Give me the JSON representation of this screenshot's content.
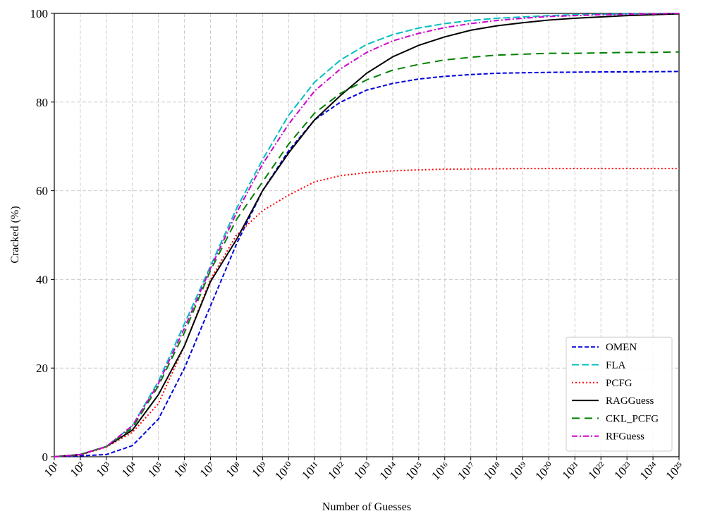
{
  "chart_data": {
    "type": "line",
    "x_label": "Number of Guesses",
    "y_label": "Cracked (%)",
    "x": [
      10.0,
      100.0,
      1000.0,
      10000.0,
      100000.0,
      1000000.0,
      10000000.0,
      100000000.0,
      1000000000.0,
      10000000000.0,
      100000000000.0,
      1000000000000.0,
      10000000000000.0,
      100000000000000.0,
      1000000000000000.0,
      1e+16,
      1e+17,
      1e+18,
      1e+19,
      1e+20,
      1e+21,
      1e+22,
      1e+23,
      1e+24,
      1e+25
    ],
    "xscale": "log",
    "xlim": [
      10.0,
      1e+25
    ],
    "xticks": [
      {
        "value": 10.0,
        "label": "10¹"
      },
      {
        "value": 100.0,
        "label": "10²"
      },
      {
        "value": 1000.0,
        "label": "10³"
      },
      {
        "value": 10000.0,
        "label": "10⁴"
      },
      {
        "value": 100000.0,
        "label": "10⁵"
      },
      {
        "value": 1000000.0,
        "label": "10⁶"
      },
      {
        "value": 10000000.0,
        "label": "10⁷"
      },
      {
        "value": 100000000.0,
        "label": "10⁸"
      },
      {
        "value": 1000000000.0,
        "label": "10⁹"
      },
      {
        "value": 10000000000.0,
        "label": "10¹⁰"
      },
      {
        "value": 100000000000.0,
        "label": "10¹¹"
      },
      {
        "value": 1000000000000.0,
        "label": "10¹²"
      },
      {
        "value": 10000000000000.0,
        "label": "10¹³"
      },
      {
        "value": 100000000000000.0,
        "label": "10¹⁴"
      },
      {
        "value": 1000000000000000.0,
        "label": "10¹⁵"
      },
      {
        "value": 1e+16,
        "label": "10¹⁶"
      },
      {
        "value": 1e+17,
        "label": "10¹⁷"
      },
      {
        "value": 1e+18,
        "label": "10¹⁸"
      },
      {
        "value": 1e+19,
        "label": "10¹⁹"
      },
      {
        "value": 1e+20,
        "label": "10²⁰"
      },
      {
        "value": 1e+21,
        "label": "10²¹"
      },
      {
        "value": 1e+22,
        "label": "10²²"
      },
      {
        "value": 1e+23,
        "label": "10²³"
      },
      {
        "value": 1e+24,
        "label": "10²⁴"
      },
      {
        "value": 1e+25,
        "label": "10²⁵"
      }
    ],
    "ylim": [
      0,
      100
    ],
    "yticks": [
      0,
      20,
      40,
      60,
      80,
      100
    ],
    "grid": true,
    "legend": "lower right",
    "series": [
      {
        "name": "OMEN",
        "color": "#0000dd",
        "linestyle": "dashed",
        "values": [
          0,
          0.2,
          0.5,
          2.5,
          8.5,
          20,
          34,
          48,
          60,
          69,
          76,
          80,
          82.7,
          84.2,
          85.2,
          85.8,
          86.2,
          86.5,
          86.6,
          86.7,
          86.75,
          86.8,
          86.8,
          86.85,
          86.9
        ]
      },
      {
        "name": "FLA",
        "color": "#00bfbf",
        "linestyle": "longdash",
        "values": [
          0,
          0.5,
          2.3,
          7,
          17,
          30,
          43,
          56,
          67,
          77,
          84.5,
          89.5,
          93,
          95.2,
          96.7,
          97.7,
          98.4,
          98.9,
          99.2,
          99.5,
          99.7,
          99.8,
          99.9,
          99.9,
          100
        ]
      },
      {
        "name": "PCFG",
        "color": "#ff0000",
        "linestyle": "dotted",
        "values": [
          0,
          0.4,
          2.2,
          5.5,
          12,
          25,
          40,
          50,
          55.5,
          59,
          62,
          63.4,
          64.1,
          64.5,
          64.7,
          64.85,
          64.9,
          64.95,
          65,
          65,
          65,
          65,
          65,
          65,
          65
        ]
      },
      {
        "name": "RAGGuess",
        "color": "#000000",
        "linestyle": "solid",
        "values": [
          0,
          0.5,
          2.3,
          6,
          14,
          25,
          39.5,
          49,
          60,
          68.5,
          76,
          81.5,
          86.5,
          90.2,
          92.8,
          94.7,
          96.2,
          97.2,
          97.9,
          98.5,
          98.9,
          99.2,
          99.5,
          99.7,
          99.9
        ]
      },
      {
        "name": "CKL_PCFG",
        "color": "#008000",
        "linestyle": "widedash",
        "values": [
          0,
          0.5,
          2.3,
          6.5,
          16,
          28,
          42,
          53.5,
          62,
          70.5,
          77.5,
          82,
          85,
          87.2,
          88.5,
          89.5,
          90.1,
          90.6,
          90.8,
          91,
          91,
          91.1,
          91.2,
          91.2,
          91.3
        ]
      },
      {
        "name": "RFGuess",
        "color": "#cc00cc",
        "linestyle": "dashdot",
        "values": [
          0,
          0.5,
          2.3,
          7,
          16.5,
          29,
          42.5,
          55,
          66,
          75,
          82.5,
          87.5,
          91.2,
          93.8,
          95.5,
          96.8,
          97.7,
          98.4,
          98.9,
          99.3,
          99.5,
          99.7,
          99.8,
          99.9,
          100
        ]
      }
    ]
  }
}
